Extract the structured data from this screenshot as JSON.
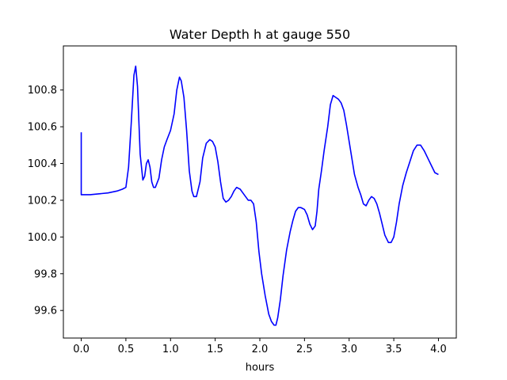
{
  "chart_data": {
    "type": "line",
    "title": "Water Depth h at gauge 550",
    "xlabel": "hours",
    "ylabel": "",
    "xlim": [
      -0.2,
      4.2
    ],
    "ylim": [
      99.45,
      101.04
    ],
    "xticks": [
      0.0,
      0.5,
      1.0,
      1.5,
      2.0,
      2.5,
      3.0,
      3.5,
      4.0
    ],
    "xtick_labels": [
      "0.0",
      "0.5",
      "1.0",
      "1.5",
      "2.0",
      "2.5",
      "3.0",
      "3.5",
      "4.0"
    ],
    "yticks": [
      99.6,
      99.8,
      100.0,
      100.2,
      100.4,
      100.6,
      100.8
    ],
    "ytick_labels": [
      "99.6",
      "99.8",
      "100.0",
      "100.2",
      "100.4",
      "100.6",
      "100.8"
    ],
    "grid": false,
    "series": [
      {
        "color": "#0000ff",
        "x": [
          0.0,
          0.0,
          0.0,
          0.1,
          0.2,
          0.3,
          0.4,
          0.46,
          0.5,
          0.53,
          0.56,
          0.59,
          0.61,
          0.63,
          0.66,
          0.69,
          0.71,
          0.73,
          0.75,
          0.77,
          0.79,
          0.81,
          0.83,
          0.87,
          0.9,
          0.93,
          0.96,
          1.0,
          1.04,
          1.07,
          1.1,
          1.12,
          1.15,
          1.18,
          1.21,
          1.24,
          1.26,
          1.29,
          1.33,
          1.36,
          1.4,
          1.44,
          1.47,
          1.5,
          1.53,
          1.56,
          1.59,
          1.62,
          1.65,
          1.68,
          1.71,
          1.74,
          1.78,
          1.81,
          1.84,
          1.87,
          1.9,
          1.93,
          1.96,
          1.99,
          2.02,
          2.06,
          2.1,
          2.13,
          2.16,
          2.18,
          2.2,
          2.23,
          2.26,
          2.3,
          2.34,
          2.37,
          2.4,
          2.43,
          2.46,
          2.5,
          2.53,
          2.56,
          2.59,
          2.62,
          2.64,
          2.66,
          2.69,
          2.72,
          2.76,
          2.79,
          2.82,
          2.85,
          2.88,
          2.91,
          2.94,
          2.97,
          3.0,
          3.03,
          3.06,
          3.1,
          3.13,
          3.16,
          3.19,
          3.22,
          3.25,
          3.28,
          3.31,
          3.34,
          3.37,
          3.4,
          3.44,
          3.47,
          3.5,
          3.53,
          3.56,
          3.6,
          3.64,
          3.68,
          3.72,
          3.76,
          3.8,
          3.84,
          3.88,
          3.92,
          3.96,
          4.0
        ],
        "y": [
          100.57,
          100.23,
          100.23,
          100.23,
          100.235,
          100.24,
          100.25,
          100.26,
          100.27,
          100.38,
          100.62,
          100.88,
          100.93,
          100.82,
          100.45,
          100.31,
          100.33,
          100.4,
          100.42,
          100.38,
          100.3,
          100.27,
          100.27,
          100.32,
          100.42,
          100.49,
          100.53,
          100.58,
          100.67,
          100.8,
          100.87,
          100.85,
          100.76,
          100.58,
          100.36,
          100.25,
          100.22,
          100.22,
          100.3,
          100.43,
          100.51,
          100.53,
          100.52,
          100.49,
          100.41,
          100.3,
          100.21,
          100.19,
          100.2,
          100.22,
          100.25,
          100.27,
          100.26,
          100.24,
          100.22,
          100.2,
          100.2,
          100.18,
          100.08,
          99.92,
          99.8,
          99.68,
          99.58,
          99.54,
          99.52,
          99.52,
          99.56,
          99.66,
          99.79,
          99.93,
          100.03,
          100.09,
          100.14,
          100.16,
          100.16,
          100.15,
          100.12,
          100.07,
          100.04,
          100.06,
          100.14,
          100.26,
          100.36,
          100.47,
          100.6,
          100.72,
          100.77,
          100.76,
          100.75,
          100.73,
          100.69,
          100.61,
          100.52,
          100.43,
          100.34,
          100.27,
          100.23,
          100.18,
          100.17,
          100.2,
          100.22,
          100.21,
          100.18,
          100.13,
          100.07,
          100.01,
          99.97,
          99.97,
          100.0,
          100.08,
          100.18,
          100.28,
          100.35,
          100.41,
          100.47,
          100.5,
          100.5,
          100.47,
          100.43,
          100.39,
          100.35,
          100.34
        ]
      }
    ]
  }
}
